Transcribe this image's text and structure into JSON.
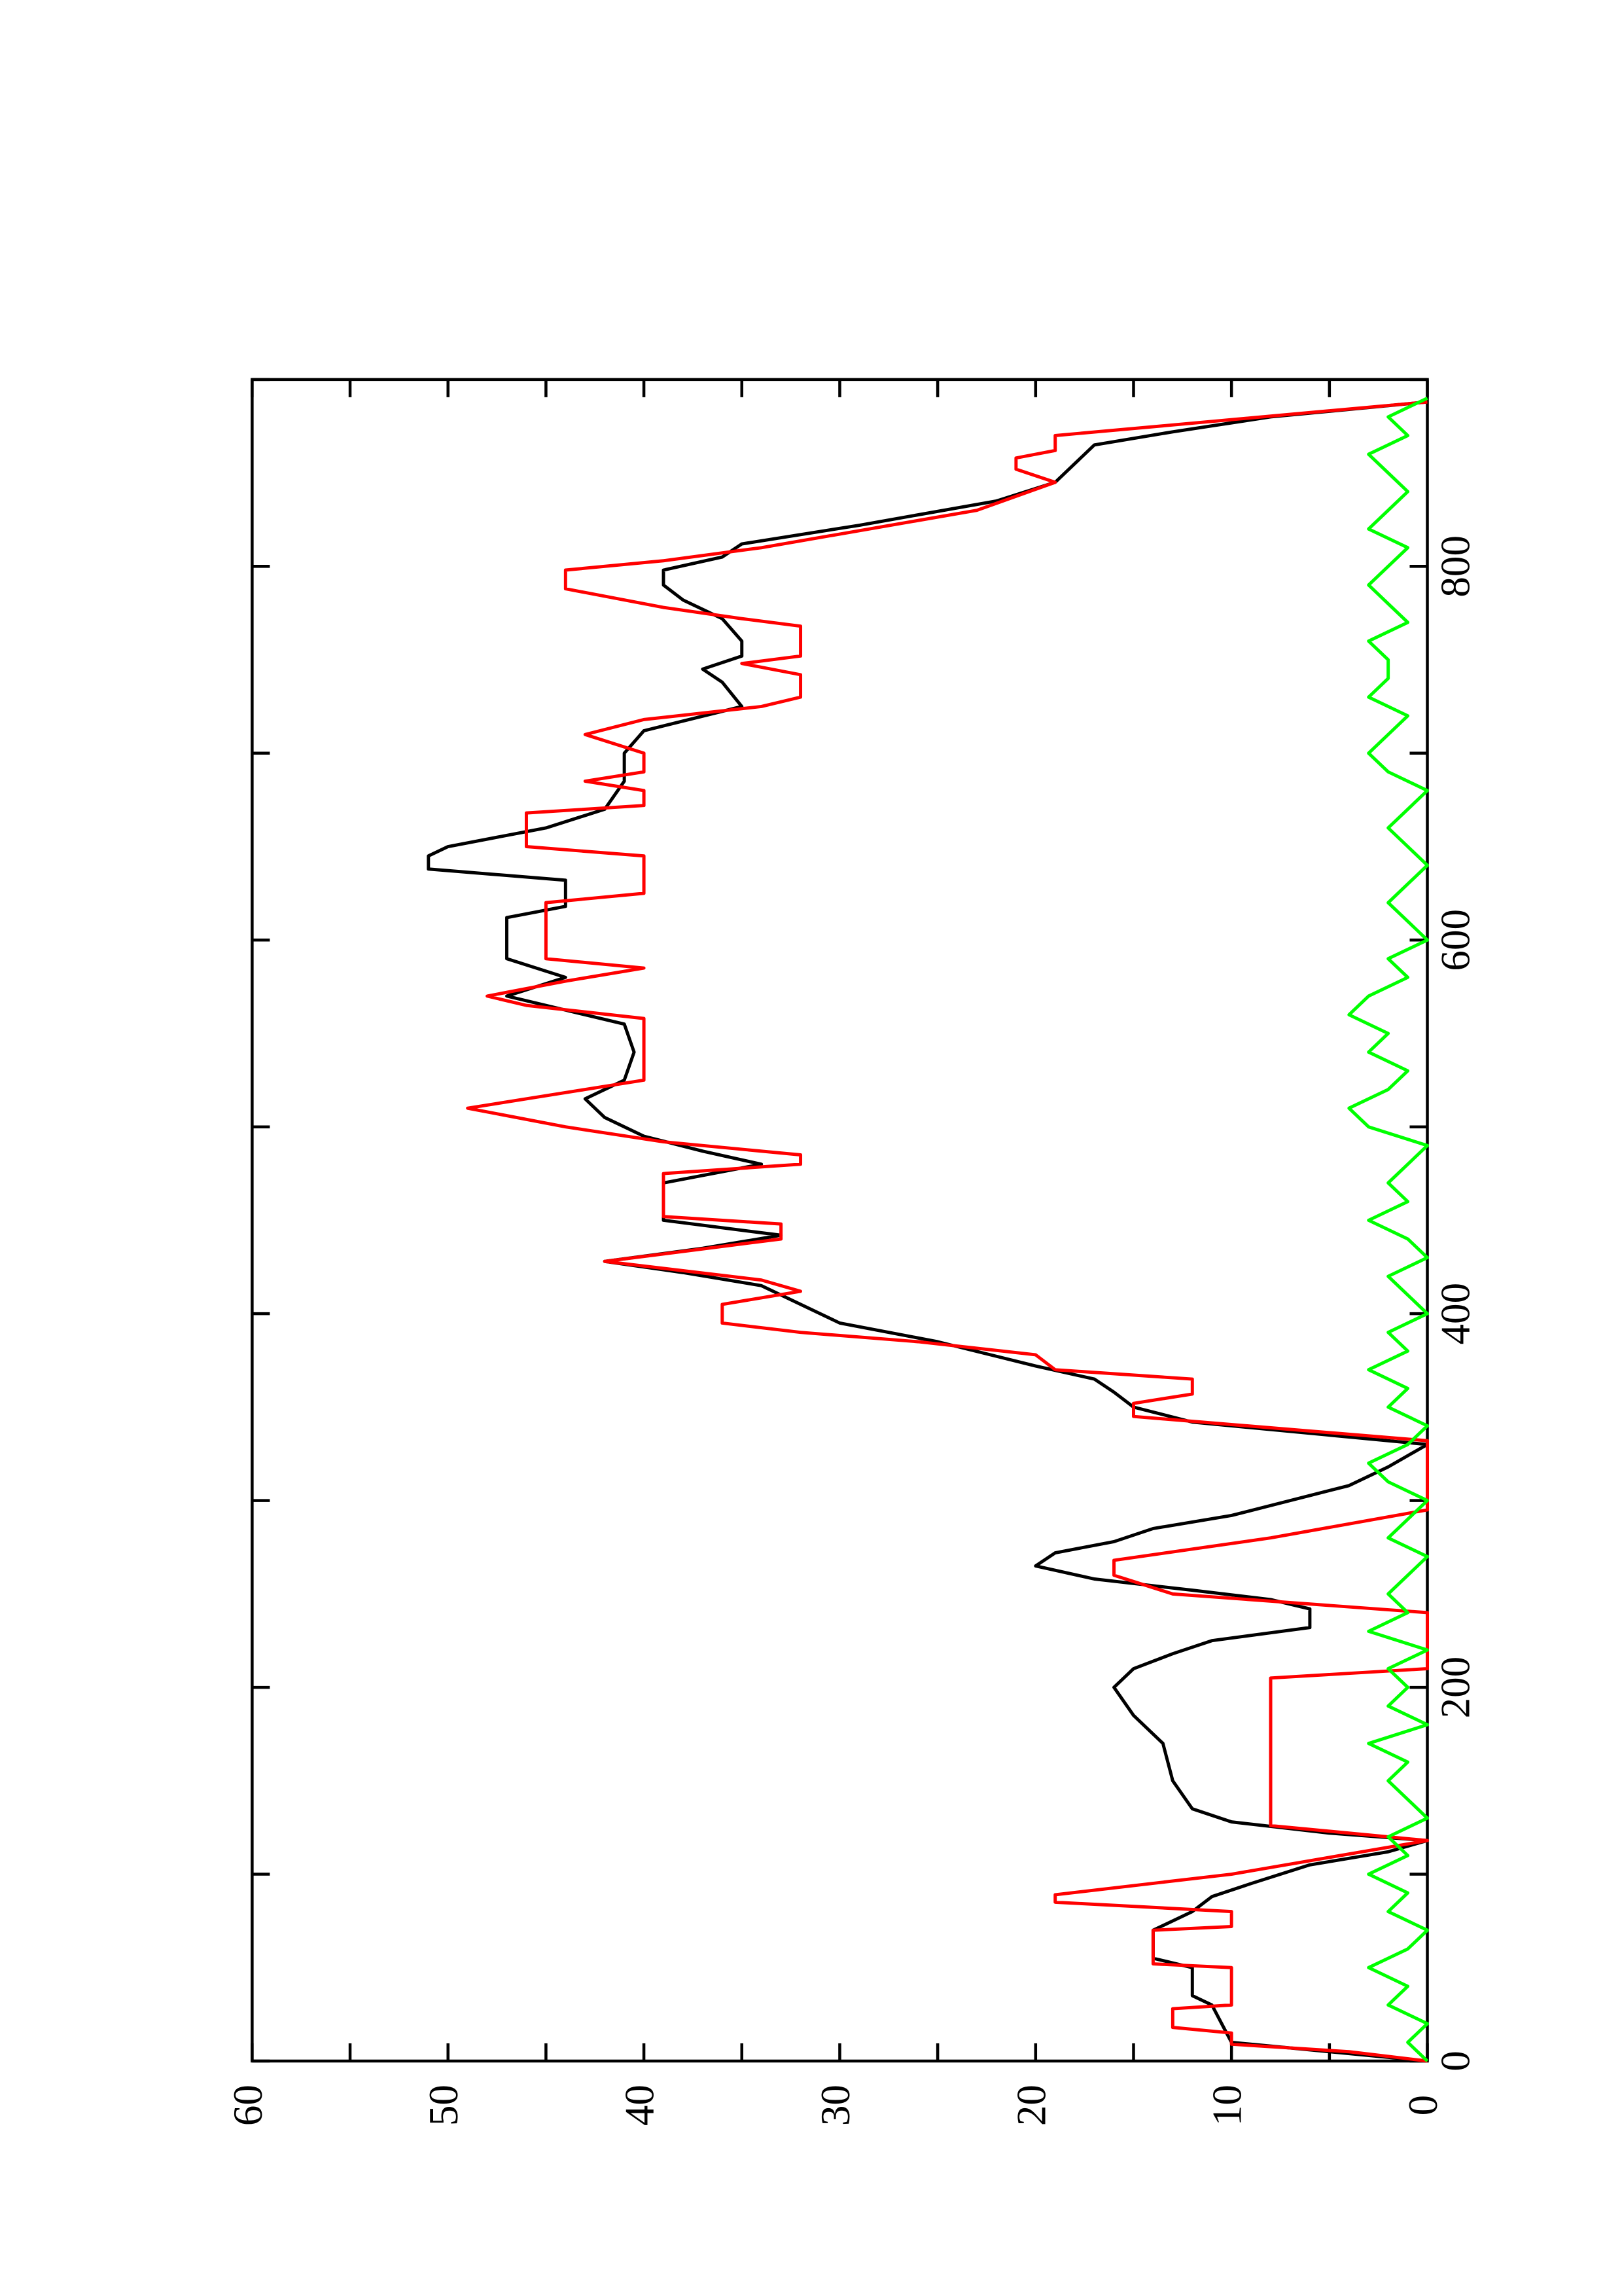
{
  "chart_data": {
    "type": "line",
    "orientation": "rotated",
    "xlim": [
      0,
      900
    ],
    "ylim": [
      0,
      60
    ],
    "xticks": [
      0,
      200,
      400,
      600,
      800
    ],
    "x_minor_ticks": [
      100,
      300,
      500,
      700,
      900
    ],
    "yticks": [
      0,
      10,
      20,
      30,
      40,
      50,
      60
    ],
    "y_minor_ticks": [
      5,
      15,
      25,
      35,
      45,
      55
    ],
    "series": [
      {
        "color": "#000000",
        "x": [
          0,
          5,
          10,
          20,
          30,
          35,
          50,
          55,
          70,
          80,
          88,
          95,
          105,
          112,
          118,
          122,
          128,
          135,
          150,
          170,
          185,
          200,
          210,
          218,
          225,
          232,
          242,
          247,
          252,
          258,
          265,
          272,
          278,
          285,
          292,
          300,
          308,
          318,
          330,
          342,
          350,
          358,
          365,
          372,
          385,
          395,
          405,
          415,
          422,
          428,
          435,
          442,
          450,
          470,
          480,
          487,
          495,
          505,
          515,
          525,
          540,
          555,
          565,
          570,
          580,
          590,
          612,
          618,
          632,
          638,
          645,
          650,
          660,
          670,
          685,
          700,
          712,
          725,
          738,
          745,
          752,
          760,
          772,
          782,
          790,
          798,
          805,
          812,
          822,
          835,
          845,
          855,
          865,
          872,
          880,
          888
        ],
        "values": [
          0,
          5,
          10,
          10.5,
          11,
          12,
          12,
          14,
          14,
          12,
          11,
          9,
          6,
          2,
          0,
          5,
          10,
          12,
          13,
          13.5,
          15,
          16,
          15,
          13,
          11,
          6,
          6,
          8,
          12,
          17,
          20,
          19,
          16,
          14,
          10,
          7,
          4,
          2,
          0,
          12,
          15,
          16,
          17,
          20,
          25,
          30,
          32,
          34,
          38,
          42,
          37,
          33,
          39,
          39,
          34,
          37,
          40,
          42,
          43,
          41,
          40.5,
          41,
          45,
          47,
          44,
          47,
          47,
          44,
          44,
          51,
          51,
          50,
          45,
          42,
          41,
          41,
          40,
          35,
          36,
          37,
          35,
          35,
          36,
          38,
          39,
          39,
          36,
          35,
          29,
          22,
          19,
          18,
          17,
          13,
          8,
          0
        ]
      },
      {
        "color": "#ff0000",
        "x": [
          0,
          5,
          9,
          15,
          18,
          28,
          30,
          50,
          52,
          70,
          72,
          80,
          85,
          89,
          100,
          118,
          126,
          205,
          210,
          240,
          250,
          260,
          268,
          280,
          295,
          332,
          345,
          352,
          357,
          365,
          370,
          378,
          385,
          390,
          395,
          405,
          412,
          418,
          428,
          440,
          448,
          452,
          475,
          480,
          485,
          492,
          500,
          510,
          520,
          525,
          558,
          565,
          570,
          578,
          585,
          590,
          620,
          625,
          645,
          650,
          668,
          672,
          680,
          685,
          690,
          700,
          710,
          718,
          725,
          730,
          742,
          748,
          752,
          768,
          772,
          778,
          788,
          798,
          803,
          810,
          830,
          845,
          852,
          858,
          862,
          870,
          888
        ],
        "values": [
          0,
          4,
          10,
          10,
          13,
          13,
          10,
          10,
          14,
          14,
          10,
          10,
          19,
          19,
          10,
          0,
          8,
          8,
          0,
          0,
          13,
          16,
          16,
          8,
          0,
          0,
          15,
          15,
          12,
          12,
          19,
          20,
          26,
          32,
          36,
          36,
          32,
          34,
          42,
          33,
          33,
          39,
          39,
          32,
          32,
          39,
          44,
          49,
          43,
          40,
          40,
          46,
          48,
          44,
          40,
          45,
          45,
          40,
          40,
          46,
          46,
          40,
          40,
          43,
          40,
          40,
          43,
          40,
          34,
          32,
          32,
          35,
          32,
          32,
          35,
          39,
          44,
          44,
          39,
          34,
          23,
          19,
          21,
          21,
          19,
          19,
          0
        ]
      },
      {
        "color": "#00ff00",
        "x": [
          0,
          10,
          20,
          30,
          40,
          50,
          60,
          70,
          80,
          90,
          100,
          110,
          120,
          130,
          140,
          150,
          160,
          170,
          180,
          190,
          200,
          210,
          220,
          230,
          240,
          250,
          260,
          270,
          280,
          290,
          300,
          310,
          320,
          330,
          340,
          350,
          360,
          370,
          380,
          390,
          400,
          410,
          420,
          430,
          440,
          450,
          460,
          470,
          480,
          490,
          500,
          510,
          520,
          530,
          540,
          550,
          560,
          570,
          580,
          590,
          600,
          610,
          620,
          630,
          640,
          650,
          660,
          670,
          680,
          690,
          700,
          710,
          720,
          730,
          740,
          750,
          760,
          770,
          780,
          790,
          800,
          810,
          820,
          830,
          840,
          850,
          860,
          870,
          880,
          890
        ],
        "values": [
          0,
          1,
          0,
          2,
          1,
          3,
          1,
          0,
          2,
          1,
          3,
          1,
          2,
          0,
          1,
          2,
          1,
          3,
          0,
          2,
          1,
          2,
          0,
          3,
          1,
          2,
          1,
          0,
          2,
          1,
          0,
          2,
          3,
          1,
          0,
          2,
          1,
          3,
          1,
          2,
          0,
          1,
          2,
          0,
          1,
          3,
          1,
          2,
          1,
          0,
          3,
          4,
          2,
          1,
          3,
          2,
          4,
          3,
          1,
          2,
          0,
          1,
          2,
          1,
          0,
          1,
          2,
          1,
          0,
          2,
          3,
          2,
          1,
          3,
          2,
          2,
          3,
          1,
          2,
          3,
          2,
          1,
          3,
          2,
          1,
          2,
          3,
          1,
          2,
          0
        ]
      }
    ]
  }
}
